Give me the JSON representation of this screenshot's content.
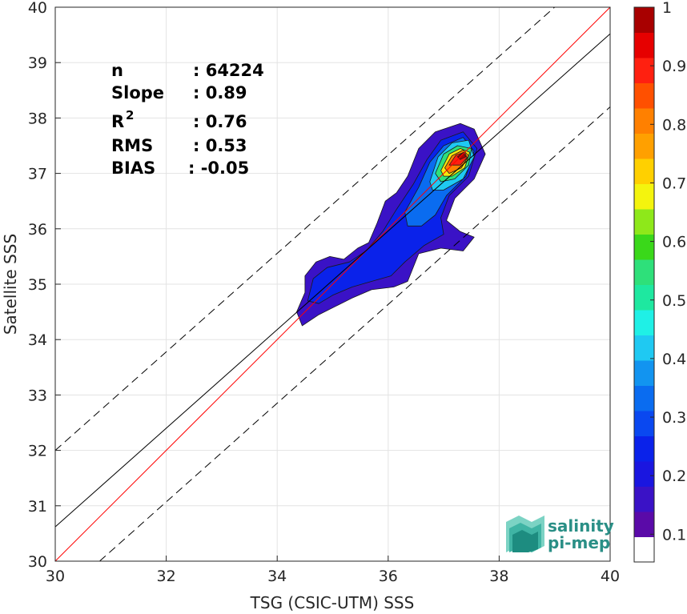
{
  "chart_data": {
    "type": "heatmap",
    "title": "",
    "xlabel": "TSG (CSIC-UTM) SSS",
    "ylabel": "Satellite SSS",
    "xlim": [
      30,
      40
    ],
    "ylim": [
      30,
      40
    ],
    "xticks": [
      30,
      32,
      34,
      36,
      38,
      40
    ],
    "yticks": [
      30,
      31,
      32,
      33,
      34,
      35,
      36,
      37,
      38,
      39,
      40
    ],
    "grid": true,
    "stats": [
      {
        "label": "n",
        "value": ": 64224"
      },
      {
        "label": "Slope",
        "value": ": 0.89"
      },
      {
        "label": "R",
        "superscript": "2",
        "value": ": 0.76"
      },
      {
        "label": "RMS",
        "value": ": 0.53"
      },
      {
        "label": "BIAS",
        "value": ": -0.05"
      }
    ],
    "lines": [
      {
        "name": "one-to-one",
        "color": "#ff0000",
        "style": "solid",
        "points": [
          [
            30,
            30
          ],
          [
            40,
            40
          ]
        ]
      },
      {
        "name": "fit",
        "color": "#000000",
        "style": "solid",
        "points": [
          [
            30,
            30.62
          ],
          [
            40,
            39.52
          ]
        ]
      },
      {
        "name": "upper-bound",
        "color": "#000000",
        "style": "dashed",
        "points": [
          [
            30,
            32.0
          ],
          [
            39.0,
            40.0
          ]
        ]
      },
      {
        "name": "lower-bound",
        "color": "#000000",
        "style": "dashed",
        "points": [
          [
            30.8,
            30.0
          ],
          [
            40,
            38.2
          ]
        ]
      }
    ],
    "density_levels": [
      {
        "level": 0.05,
        "color": "#3a12c6",
        "points": [
          [
            34.35,
            34.5
          ],
          [
            34.5,
            34.85
          ],
          [
            34.5,
            35.15
          ],
          [
            34.7,
            35.4
          ],
          [
            34.95,
            35.5
          ],
          [
            35.2,
            35.45
          ],
          [
            35.45,
            35.65
          ],
          [
            35.65,
            35.75
          ],
          [
            35.8,
            36.1
          ],
          [
            35.95,
            36.5
          ],
          [
            36.15,
            36.65
          ],
          [
            36.35,
            36.95
          ],
          [
            36.55,
            37.45
          ],
          [
            36.85,
            37.75
          ],
          [
            37.3,
            37.9
          ],
          [
            37.55,
            37.8
          ],
          [
            37.75,
            37.35
          ],
          [
            37.55,
            36.9
          ],
          [
            37.2,
            36.55
          ],
          [
            37.05,
            36.15
          ],
          [
            37.3,
            35.95
          ],
          [
            37.55,
            35.85
          ],
          [
            37.35,
            35.6
          ],
          [
            36.95,
            35.65
          ],
          [
            36.55,
            35.55
          ],
          [
            36.35,
            35.05
          ],
          [
            36.1,
            34.95
          ],
          [
            35.7,
            34.9
          ],
          [
            35.35,
            34.75
          ],
          [
            35.05,
            34.6
          ],
          [
            34.75,
            34.45
          ],
          [
            34.45,
            34.25
          ]
        ]
      },
      {
        "level": 0.15,
        "color": "#0a22ea",
        "points": [
          [
            34.55,
            34.7
          ],
          [
            34.65,
            35.1
          ],
          [
            34.9,
            35.3
          ],
          [
            35.3,
            35.4
          ],
          [
            35.6,
            35.6
          ],
          [
            35.9,
            35.95
          ],
          [
            36.15,
            36.35
          ],
          [
            36.45,
            36.8
          ],
          [
            36.7,
            37.25
          ],
          [
            36.95,
            37.6
          ],
          [
            37.35,
            37.75
          ],
          [
            37.6,
            37.45
          ],
          [
            37.45,
            36.95
          ],
          [
            37.1,
            36.6
          ],
          [
            36.95,
            36.2
          ],
          [
            37.0,
            35.9
          ],
          [
            36.65,
            35.7
          ],
          [
            36.3,
            35.4
          ],
          [
            36.05,
            35.15
          ],
          [
            35.7,
            35.05
          ],
          [
            35.35,
            34.95
          ],
          [
            35.0,
            34.8
          ],
          [
            34.75,
            34.65
          ]
        ]
      },
      {
        "level": 0.25,
        "color": "#0a6cf0",
        "points": [
          [
            36.3,
            36.3
          ],
          [
            36.55,
            36.75
          ],
          [
            36.75,
            37.2
          ],
          [
            37.0,
            37.5
          ],
          [
            37.35,
            37.65
          ],
          [
            37.55,
            37.4
          ],
          [
            37.4,
            36.95
          ],
          [
            37.05,
            36.6
          ],
          [
            36.85,
            36.25
          ],
          [
            36.6,
            36.05
          ],
          [
            36.35,
            36.05
          ]
        ]
      },
      {
        "level": 0.35,
        "color": "#1fc9f2",
        "points": [
          [
            36.75,
            36.85
          ],
          [
            36.9,
            37.3
          ],
          [
            37.15,
            37.55
          ],
          [
            37.45,
            37.6
          ],
          [
            37.55,
            37.3
          ],
          [
            37.35,
            36.9
          ],
          [
            37.0,
            36.7
          ],
          [
            36.8,
            36.7
          ]
        ]
      },
      {
        "level": 0.45,
        "color": "#2ee07a",
        "points": [
          [
            36.85,
            37.0
          ],
          [
            37.0,
            37.35
          ],
          [
            37.25,
            37.5
          ],
          [
            37.5,
            37.45
          ],
          [
            37.45,
            37.15
          ],
          [
            37.2,
            36.9
          ],
          [
            36.95,
            36.85
          ]
        ]
      },
      {
        "level": 0.6,
        "color": "#f4e60e",
        "points": [
          [
            36.95,
            37.05
          ],
          [
            37.1,
            37.35
          ],
          [
            37.3,
            37.45
          ],
          [
            37.47,
            37.38
          ],
          [
            37.38,
            37.1
          ],
          [
            37.15,
            36.95
          ],
          [
            37.0,
            36.95
          ]
        ]
      },
      {
        "level": 0.75,
        "color": "#ff8000",
        "points": [
          [
            37.02,
            37.1
          ],
          [
            37.15,
            37.32
          ],
          [
            37.35,
            37.42
          ],
          [
            37.45,
            37.32
          ],
          [
            37.32,
            37.1
          ],
          [
            37.1,
            37.0
          ]
        ]
      },
      {
        "level": 0.85,
        "color": "#ff2010",
        "points": [
          [
            37.1,
            37.15
          ],
          [
            37.22,
            37.33
          ],
          [
            37.38,
            37.38
          ],
          [
            37.42,
            37.28
          ],
          [
            37.3,
            37.15
          ]
        ]
      },
      {
        "level": 0.95,
        "color": "#a80000",
        "points": [
          [
            37.25,
            37.3
          ],
          [
            37.35,
            37.38
          ],
          [
            37.4,
            37.3
          ],
          [
            37.3,
            37.25
          ]
        ]
      }
    ],
    "colorbar": {
      "ticks": [
        "0.1",
        "0.2",
        "0.3",
        "0.4",
        "0.5",
        "0.6",
        "0.7",
        "0.8",
        "0.9",
        "1"
      ],
      "colors": [
        "#ffffff",
        "#5a0aa8",
        "#3a12c6",
        "#1a16e0",
        "#0a22ea",
        "#0a48f0",
        "#0a6cf0",
        "#1294f0",
        "#1fc9f2",
        "#1ff0e6",
        "#1ee8a0",
        "#2ee07a",
        "#3ad81a",
        "#8ee81a",
        "#f4f40e",
        "#ffd000",
        "#ffa000",
        "#ff8000",
        "#ff5000",
        "#ff2010",
        "#e60000",
        "#a80000"
      ]
    }
  },
  "logo": {
    "line1": "salinity",
    "line2": "pi-mep"
  }
}
